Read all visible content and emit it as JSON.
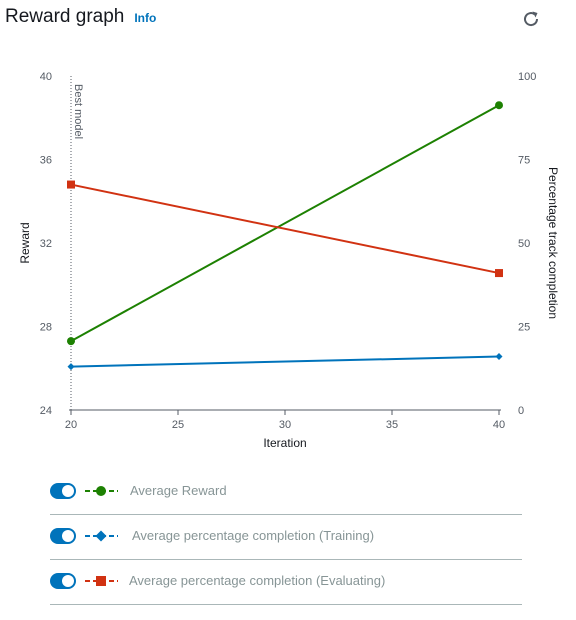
{
  "header": {
    "title": "Reward graph",
    "info_label": "Info"
  },
  "chart_data": {
    "type": "line",
    "xlabel": "Iteration",
    "ylabel": "Reward",
    "y2label": "Percentage track completion",
    "xlim": [
      20,
      40
    ],
    "ylim": [
      24,
      40
    ],
    "y2lim": [
      0,
      100
    ],
    "xticks": [
      20,
      25,
      30,
      35,
      40
    ],
    "yticks": [
      24,
      28,
      32,
      36,
      40
    ],
    "y2ticks": [
      0,
      25,
      50,
      75,
      100
    ],
    "annotation": {
      "label": "Best model",
      "x": 20
    },
    "series": [
      {
        "name": "Average Reward",
        "axis": "left",
        "color": "#1d8102",
        "marker": "circle",
        "x": [
          20,
          40
        ],
        "y": [
          27.3,
          38.6
        ]
      },
      {
        "name": "Average percentage completion (Training)",
        "axis": "right",
        "color": "#0073bb",
        "marker": "diamond",
        "x": [
          20,
          40
        ],
        "y": [
          13,
          16
        ]
      },
      {
        "name": "Average percentage completion (Evaluating)",
        "axis": "right",
        "color": "#d13212",
        "marker": "square",
        "x": [
          20,
          40
        ],
        "y": [
          67.5,
          41
        ]
      }
    ],
    "grid": false,
    "legend_position": "bottom"
  },
  "legend": [
    {
      "label": "Average Reward",
      "enabled": true,
      "color": "#1d8102",
      "marker": "circle"
    },
    {
      "label": "Average percentage completion (Training)",
      "enabled": true,
      "color": "#0073bb",
      "marker": "diamond"
    },
    {
      "label": "Average percentage completion (Evaluating)",
      "enabled": true,
      "color": "#d13212",
      "marker": "square"
    }
  ]
}
